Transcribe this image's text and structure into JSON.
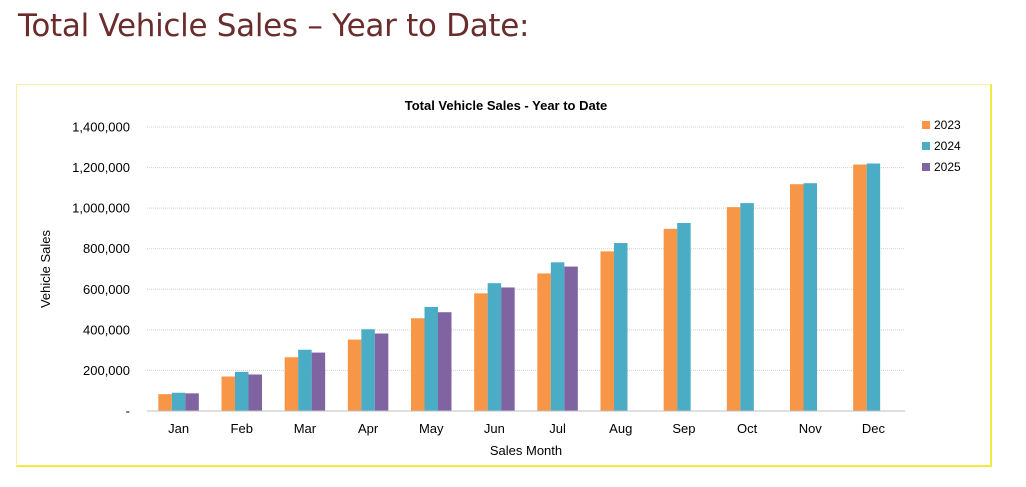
{
  "page": {
    "heading": "Total Vehicle Sales – Year to Date:"
  },
  "chart_data": {
    "type": "bar",
    "title": "Total Vehicle Sales - Year to Date",
    "xlabel": "Sales Month",
    "ylabel": "Vehicle Sales",
    "categories": [
      "Jan",
      "Feb",
      "Mar",
      "Apr",
      "May",
      "Jun",
      "Jul",
      "Aug",
      "Sep",
      "Oct",
      "Nov",
      "Dec"
    ],
    "ylim": [
      0,
      1400000
    ],
    "yticks": [
      0,
      200000,
      400000,
      600000,
      800000,
      1000000,
      1200000,
      1400000
    ],
    "ytick_labels": [
      "-",
      "200,000",
      "400,000",
      "600,000",
      "800,000",
      "1,000,000",
      "1,200,000",
      "1,400,000"
    ],
    "grid": true,
    "legend_position": "right",
    "series": [
      {
        "name": "2023",
        "color": "#f79646",
        "values": [
          83000,
          170000,
          265000,
          352000,
          457000,
          580000,
          678000,
          787000,
          898000,
          1005000,
          1118000,
          1215000
        ]
      },
      {
        "name": "2024",
        "color": "#4bacc6",
        "values": [
          90000,
          193000,
          302000,
          403000,
          513000,
          630000,
          733000,
          828000,
          927000,
          1025000,
          1123000,
          1220000
        ]
      },
      {
        "name": "2025",
        "color": "#8064a2",
        "values": [
          87000,
          180000,
          288000,
          382000,
          487000,
          609000,
          712000,
          null,
          null,
          null,
          null,
          null
        ]
      }
    ]
  }
}
